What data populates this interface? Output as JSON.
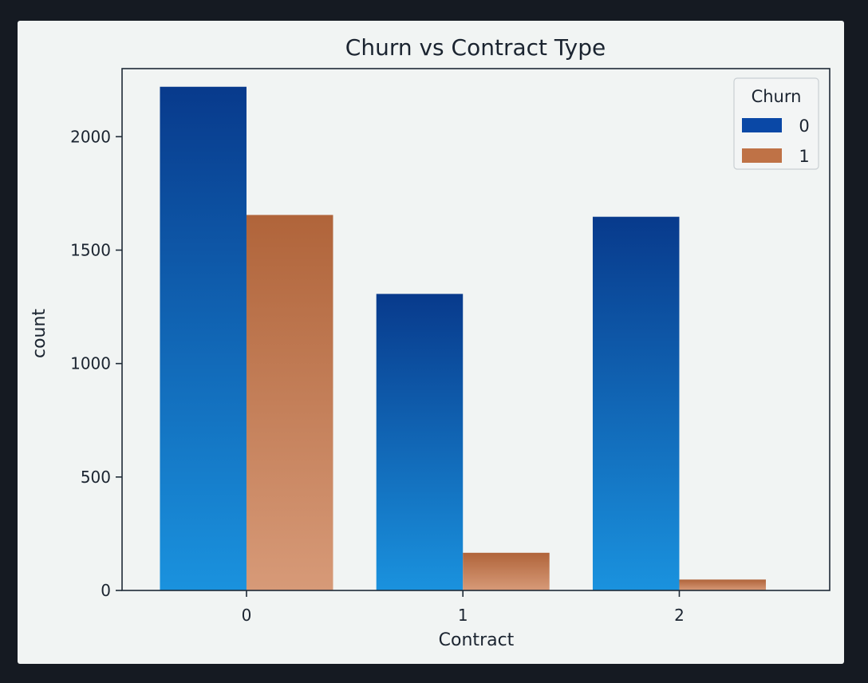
{
  "chart_data": {
    "type": "bar",
    "title": "Churn vs Contract Type",
    "xlabel": "Contract",
    "ylabel": "count",
    "categories": [
      "0",
      "1",
      "2"
    ],
    "series": [
      {
        "name": "0",
        "values": [
          2220,
          1307,
          1647
        ]
      },
      {
        "name": "1",
        "values": [
          1655,
          166,
          48
        ]
      }
    ],
    "ylim": [
      0,
      2300
    ],
    "yticks": [
      0,
      500,
      1000,
      1500,
      2000
    ],
    "legend": {
      "title": "Churn",
      "placement": "top-right"
    },
    "grid": false,
    "colors": {
      "series0_top": "#083a8c",
      "series0_bottom": "#1a92de",
      "series1_top": "#b0643a",
      "series1_bottom": "#d79a78",
      "axes": "#1e2a36",
      "text": "#1b2430"
    }
  }
}
